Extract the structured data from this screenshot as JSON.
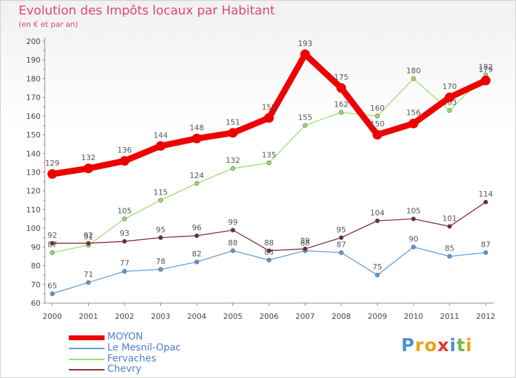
{
  "header": {
    "title": "Evolution des Impôts locaux par Habitant",
    "subtitle": "(en € et par an)"
  },
  "chart_data": {
    "type": "line",
    "title": "Evolution des Impôts locaux par Habitant",
    "subtitle": "(en € et par an)",
    "xlabel": "",
    "ylabel": "",
    "ylim": [
      60,
      200
    ],
    "yticks": [
      "60",
      "70",
      "80",
      "90",
      "100",
      "110",
      "120",
      "130",
      "140",
      "150",
      "160",
      "170",
      "180",
      "190",
      "200"
    ],
    "grid": false,
    "legend_position": "bottom-left",
    "categories": [
      "2000",
      "2001",
      "2002",
      "2003",
      "2004",
      "2005",
      "2006",
      "2007",
      "2008",
      "2009",
      "2010",
      "2011",
      "2012"
    ],
    "series": [
      {
        "name": "MOYON",
        "color": "#ee0000",
        "values": [
          129,
          132,
          136,
          144,
          148,
          151,
          159,
          193,
          175,
          150,
          156,
          170,
          179
        ]
      },
      {
        "name": "Le Mesnil-Opac",
        "color": "#5b9bd5",
        "values": [
          65,
          71,
          77,
          78,
          82,
          88,
          83,
          88,
          87,
          75,
          90,
          85,
          87
        ]
      },
      {
        "name": "Fervaches",
        "color": "#99dd66",
        "values": [
          87,
          91,
          105,
          115,
          124,
          132,
          135,
          155,
          162,
          160,
          180,
          163,
          182
        ]
      },
      {
        "name": "Chevry",
        "color": "#7a2a2a",
        "values": [
          92,
          92,
          93,
          95,
          96,
          99,
          88,
          89,
          95,
          104,
          105,
          101,
          114
        ]
      }
    ]
  },
  "legend": {
    "items": [
      "MOYON",
      "Le Mesnil-Opac",
      "Fervaches",
      "Chevry"
    ]
  },
  "logo": {
    "text": "Proxiti",
    "letter_colors": [
      "#4a90d9",
      "#e8a317",
      "#e8a317",
      "#e53935",
      "#4a90d9",
      "#7cb342",
      "#e8a317"
    ]
  }
}
